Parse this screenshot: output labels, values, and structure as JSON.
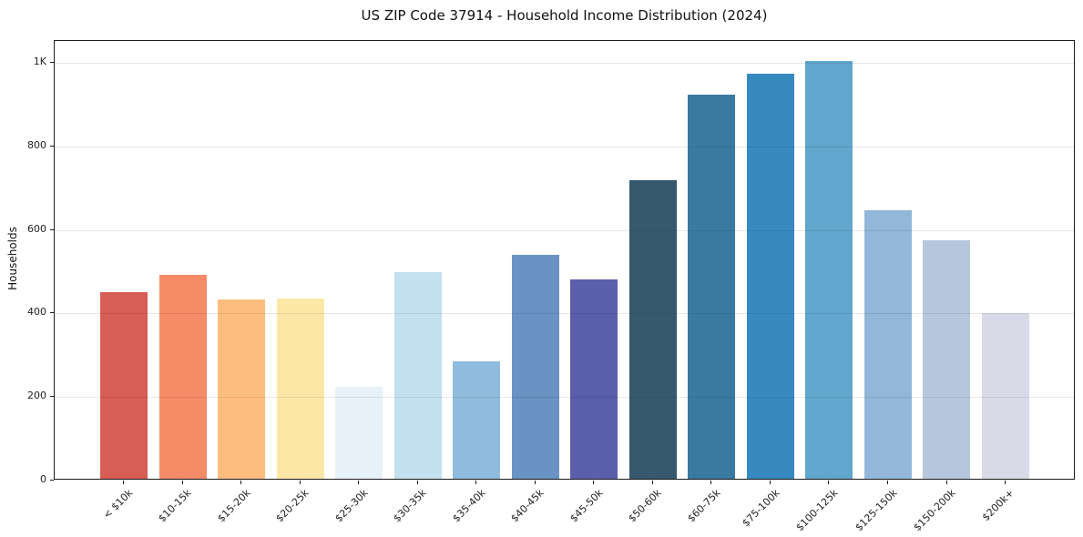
{
  "chart_data": {
    "type": "bar",
    "title": "US ZIP Code 37914 - Household Income Distribution (2024)",
    "xlabel": "",
    "ylabel": "Households",
    "categories": [
      "< $10k",
      "$10-15k",
      "$15-20k",
      "$20-25k",
      "$25-30k",
      "$30-35k",
      "$35-40k",
      "$40-45k",
      "$45-50k",
      "$50-60k",
      "$60-75k",
      "$75-100k",
      "$100-125k",
      "$125-150k",
      "$150-200k",
      "$200k+"
    ],
    "values": [
      447,
      487,
      430,
      432,
      220,
      495,
      280,
      535,
      478,
      715,
      920,
      970,
      1000,
      642,
      570,
      396
    ],
    "bar_colors": [
      "#d75d55",
      "#f68b67",
      "#fcbd7e",
      "#fde7a6",
      "#e6f1f8",
      "#c3e1f0",
      "#8fbcdc",
      "#6a92c2",
      "#5b5fab",
      "#36596e",
      "#3a7aa1",
      "#378ac0",
      "#61a6cc",
      "#93b7d8",
      "#b6c7dd",
      "#d8dae8"
    ],
    "ylim": [
      0,
      1052
    ],
    "yticks": [
      {
        "value": 0,
        "label": "0"
      },
      {
        "value": 200,
        "label": "200"
      },
      {
        "value": 400,
        "label": "400"
      },
      {
        "value": 600,
        "label": "600"
      },
      {
        "value": 800,
        "label": "800"
      },
      {
        "value": 1000,
        "label": "1K"
      }
    ],
    "grid": "horizontal, drawn over bars, light gray",
    "legend": "none"
  }
}
